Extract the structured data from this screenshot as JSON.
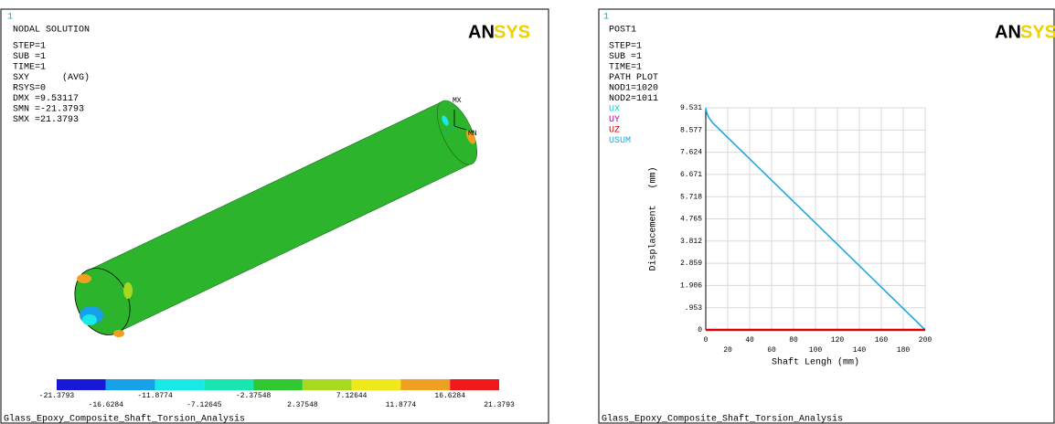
{
  "left_panel": {
    "window_number": "1",
    "title": "NODAL SOLUTION",
    "info": [
      "STEP=1",
      "SUB =1",
      "TIME=1",
      "SXY      (AVG)",
      "RSYS=0",
      "DMX =9.53117",
      "SMN =-21.3793",
      "SMX =21.3793"
    ],
    "logo": [
      "AN",
      "SYS"
    ],
    "markers": [
      "MX",
      "MN"
    ],
    "contour_levels": [
      -21.3793,
      -16.6284,
      -11.8774,
      -7.12645,
      -2.37548,
      2.37548,
      7.12644,
      11.8774,
      16.6284,
      21.3793
    ],
    "contour_colors": [
      "#1818d8",
      "#18a0e8",
      "#18e8e8",
      "#18e8b0",
      "#30c830",
      "#a8d820",
      "#f0e818",
      "#f0a020",
      "#f01818"
    ],
    "footer": "Glass_Epoxy_Composite_Shaft_Torsion_Analysis"
  },
  "right_panel": {
    "window_number": "1",
    "title": "POST1",
    "info": [
      "STEP=1",
      "SUB =1",
      "TIME=1",
      "PATH PLOT",
      "NOD1=1020",
      "NOD2=1011"
    ],
    "logo": [
      "AN",
      "SYS"
    ],
    "footer": "Glass_Epoxy_Composite_Shaft_Torsion_Analysis"
  },
  "chart_data": {
    "type": "line",
    "x_label": "Shaft Lengh (mm)",
    "y_label": "Displacement   (mm)",
    "x": [
      0,
      1,
      3,
      6,
      50,
      100,
      150,
      200
    ],
    "series": [
      {
        "name": "UX",
        "color": "#00d8d8",
        "values": [
          0,
          0,
          0,
          0,
          0,
          0,
          0,
          0
        ]
      },
      {
        "name": "UY",
        "color": "#b000b0",
        "values": [
          0,
          0,
          0,
          0,
          0,
          0,
          0,
          0
        ]
      },
      {
        "name": "UZ",
        "color": "#e00000",
        "values": [
          0,
          0,
          0,
          0,
          0,
          0,
          0,
          0
        ]
      },
      {
        "name": "USUM",
        "color": "#1ea8e8",
        "values": [
          9.531,
          9.3,
          9.1,
          8.9,
          6.88,
          4.59,
          2.29,
          0
        ]
      }
    ],
    "xlim": [
      0,
      200
    ],
    "xticks": [
      0,
      20,
      40,
      60,
      80,
      100,
      120,
      140,
      160,
      180,
      200
    ],
    "ylim": [
      0,
      9.531
    ],
    "yticks": [
      0,
      {
        "value": 0.953,
        "label": ".953"
      },
      1.906,
      2.859,
      3.812,
      4.765,
      5.718,
      6.671,
      7.624,
      8.577,
      9.531
    ],
    "grid": true
  }
}
